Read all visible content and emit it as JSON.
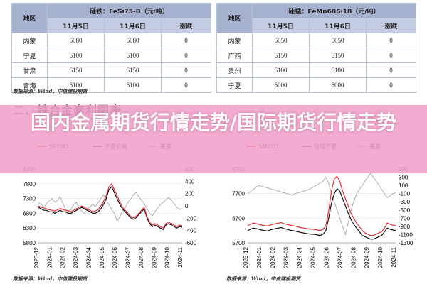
{
  "left_table": {
    "header": {
      "region": "地区",
      "product": "硅铁：FeSi75-B（元/吨）"
    },
    "subheader": {
      "d1": "11月5日",
      "d2": "11月6日",
      "chg": "涨跌"
    },
    "rows": [
      {
        "region": "内蒙",
        "d1": "6080",
        "d2": "6080",
        "chg": "0"
      },
      {
        "region": "宁夏",
        "d1": "6100",
        "d2": "6100",
        "chg": "0"
      },
      {
        "region": "甘肃",
        "d1": "6150",
        "d2": "6150",
        "chg": "0"
      },
      {
        "region": "青海",
        "d1": "6100",
        "d2": "6100",
        "chg": "0"
      }
    ]
  },
  "right_table": {
    "header": {
      "region": "地区",
      "product": "硅锰：FeMn68Si18（元/吨）"
    },
    "subheader": {
      "d1": "11月5日",
      "d2": "11月6日",
      "chg": "涨跌"
    },
    "rows": [
      {
        "region": "内蒙",
        "d1": "6050",
        "d2": "6050",
        "chg": "0"
      },
      {
        "region": "广西",
        "d1": "6150",
        "d2": "6150",
        "chg": "0"
      },
      {
        "region": "贵州",
        "d1": "6100",
        "d2": "6100",
        "chg": "0"
      },
      {
        "region": "宁夏",
        "d1": "6000",
        "d2": "6000",
        "chg": "0"
      }
    ]
  },
  "source_top": "数据来源：Wind，中信建投期货",
  "section_title": "二、铁合金套利图表",
  "banner_title": "国内金属期货行情走势/国际期货行情走势",
  "source_bottom_left": "数据来源：Wind，中信建投期货",
  "source_bottom_right": "数据来源：Wind，中信建投期货",
  "colors": {
    "header": "#a5b1cf",
    "subheader": "#c3cce2",
    "banner": "#f0a0c8",
    "red": "#e8303a",
    "black": "#111111",
    "gray": "#a8a8a8"
  },
  "chart_data": [
    {
      "type": "line",
      "title": "",
      "legend": [
        "SF2311",
        "宁夏价格",
        "基差"
      ],
      "legend_position": "top",
      "y_left_ticks": [
        "8300",
        "7800",
        "7300",
        "6800",
        "6300",
        "5800"
      ],
      "y_right_ticks": [
        "600",
        "400",
        "200",
        "0",
        "-200",
        "-400",
        "-600"
      ],
      "x_ticks": [
        "2023-12",
        "2024-01",
        "2024-02",
        "2024-03",
        "2024-04",
        "2024-05",
        "2024-06",
        "2024-07",
        "2024-08",
        "2024-09",
        "2024-10",
        "2024-11"
      ],
      "ylim_left": [
        5800,
        8300
      ],
      "ylim_right": [
        -600,
        600
      ],
      "series": [
        {
          "name": "SF2311",
          "color": "#e8303a",
          "axis": "left",
          "values": [
            7050,
            7000,
            6980,
            6950,
            6920,
            6900,
            6880,
            6920,
            6960,
            6930,
            6900,
            6880,
            6850,
            6900,
            6950,
            7000,
            7050,
            7000,
            6950,
            6900,
            6850,
            6880,
            6920,
            7050,
            7200,
            7400,
            7700,
            7800,
            7600,
            7400,
            7200,
            7000,
            6900,
            6800,
            6700,
            6650,
            6700,
            6800,
            6900,
            7000,
            6700,
            6500,
            6400,
            6450,
            6400,
            6350,
            6300,
            6450,
            6500,
            6450,
            6400,
            6350,
            6400,
            6380
          ]
        },
        {
          "name": "宁夏价格",
          "color": "#111111",
          "axis": "left",
          "values": [
            7000,
            6950,
            6900,
            6900,
            6850,
            6850,
            6800,
            6850,
            6900,
            6850,
            6850,
            6800,
            6800,
            6850,
            6900,
            6950,
            7000,
            6950,
            6900,
            6850,
            6800,
            6800,
            6850,
            6950,
            7100,
            7300,
            7600,
            7700,
            7500,
            7300,
            7100,
            6950,
            6850,
            6750,
            6650,
            6600,
            6650,
            6750,
            6850,
            6950,
            6650,
            6450,
            6350,
            6400,
            6350,
            6300,
            6250,
            6400,
            6450,
            6400,
            6350,
            6300,
            6350,
            6330
          ]
        },
        {
          "name": "基差",
          "color": "#a8a8a8",
          "axis": "right",
          "values": [
            50,
            30,
            -20,
            40,
            80,
            120,
            60,
            90,
            150,
            40,
            -50,
            -80,
            -60,
            20,
            60,
            -40,
            -90,
            -120,
            -60,
            -20,
            30,
            -10,
            50,
            120,
            180,
            90,
            20,
            -60,
            -120,
            -250,
            -180,
            -90,
            -30,
            60,
            110,
            180,
            220,
            150,
            90,
            40,
            -40,
            -120,
            -160,
            -90,
            -30,
            20,
            60,
            100,
            140,
            90,
            40,
            -20,
            -60,
            -40
          ]
        }
      ]
    },
    {
      "type": "line",
      "title": "",
      "legend": [
        "SM2311",
        "硅锰宁夏",
        "基差"
      ],
      "legend_position": "top",
      "y_left_ticks": [
        "8700",
        "7700",
        "6700",
        "5700"
      ],
      "y_right_ticks": [
        "500",
        "300",
        "100",
        "-100",
        "-300",
        "-500",
        "-700",
        "-900",
        "-1100",
        "-1300"
      ],
      "x_ticks": [
        "2023-12",
        "2024-01",
        "2024-02",
        "2024-03",
        "2024-04",
        "2024-05",
        "2024-06",
        "2024-07",
        "2024-08",
        "2024-09",
        "2024-10",
        "2024-11"
      ],
      "ylim_left": [
        5700,
        8700
      ],
      "ylim_right": [
        -1300,
        500
      ],
      "series": [
        {
          "name": "SM2311",
          "color": "#e8303a",
          "axis": "left",
          "values": [
            6400,
            6450,
            6500,
            6480,
            6450,
            6420,
            6400,
            6380,
            6420,
            6450,
            6480,
            6500,
            6520,
            6480,
            6450,
            6420,
            6400,
            6380,
            6350,
            6320,
            6300,
            6280,
            6260,
            6250,
            6240,
            6220,
            6200,
            6250,
            6400,
            7000,
            7800,
            8300,
            8400,
            8200,
            7800,
            7500,
            7200,
            6900,
            6700,
            6500,
            6350,
            6200,
            6100,
            6050,
            6000,
            6000,
            6050,
            6100,
            6150,
            6300,
            6500,
            6450,
            6420,
            6400
          ]
        },
        {
          "name": "硅锰宁夏",
          "color": "#111111",
          "axis": "left",
          "values": [
            6200,
            6250,
            6300,
            6280,
            6250,
            6220,
            6200,
            6180,
            6220,
            6250,
            6280,
            6300,
            6320,
            6280,
            6250,
            6220,
            6200,
            6180,
            6150,
            6120,
            6100,
            6080,
            6060,
            6050,
            6040,
            6020,
            6000,
            6050,
            6200,
            6700,
            7300,
            7700,
            7900,
            7800,
            7500,
            7200,
            6900,
            6650,
            6450,
            6300,
            6150,
            6000,
            5950,
            5900,
            5850,
            5850,
            5900,
            5950,
            6000,
            6150,
            6300,
            6250,
            6220,
            6200
          ]
        },
        {
          "name": "基差",
          "color": "#a8a8a8",
          "axis": "right",
          "values": [
            -100,
            -50,
            0,
            50,
            100,
            80,
            60,
            40,
            20,
            0,
            -20,
            -40,
            -60,
            -80,
            -100,
            -120,
            -140,
            -100,
            -80,
            -60,
            -40,
            -20,
            0,
            40,
            80,
            120,
            160,
            200,
            300,
            150,
            -100,
            -300,
            -500,
            -700,
            -900,
            -1100,
            -800,
            -500,
            -300,
            -100,
            0,
            100,
            200,
            300,
            400,
            300,
            200,
            100,
            0,
            -100,
            -200,
            -150,
            -100,
            -80
          ]
        }
      ]
    }
  ]
}
